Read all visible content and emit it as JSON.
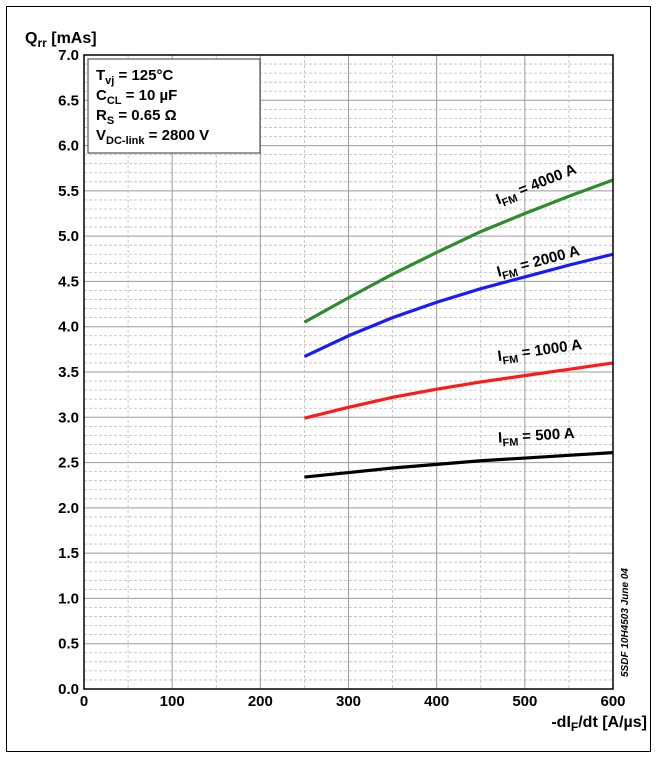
{
  "chart_data": {
    "type": "line",
    "ylabel": {
      "main": "Q",
      "sub": "rr",
      "unit": " [mAs]"
    },
    "xlabel": {
      "pre": "-dI",
      "sub": "F",
      "post": "/dt [A/µs]"
    },
    "xlim": [
      0,
      600
    ],
    "ylim": [
      0,
      7
    ],
    "x_ticks": [
      "0",
      "100",
      "200",
      "300",
      "400",
      "500",
      "600"
    ],
    "y_ticks": [
      "0.0",
      "0.5",
      "1.0",
      "1.5",
      "2.0",
      "2.5",
      "3.0",
      "3.5",
      "4.0",
      "4.5",
      "5.0",
      "5.5",
      "6.0",
      "6.5",
      "7.0"
    ],
    "x_tick_values": [
      0,
      100,
      200,
      300,
      400,
      500,
      600
    ],
    "y_tick_values": [
      0,
      0.5,
      1,
      1.5,
      2,
      2.5,
      3,
      3.5,
      4,
      4.5,
      5,
      5.5,
      6,
      6.5,
      7
    ],
    "grid": true,
    "conditions": [
      {
        "main": "T",
        "sub": "vj",
        "rest": " = 125°C"
      },
      {
        "main": "C",
        "sub": "CL",
        "rest": " = 10 µF"
      },
      {
        "main": "R",
        "sub": "S",
        "rest": " = 0.65 Ω"
      },
      {
        "main": "V",
        "sub": "DC-link",
        "rest": " = 2800 V"
      }
    ],
    "series": [
      {
        "name": "I_FM = 4000 A",
        "label_main": "I",
        "label_sub": "FM",
        "label_rest": " = 4000 A",
        "color": "#2e8b2e",
        "x": [
          250,
          300,
          350,
          400,
          450,
          500,
          550,
          600
        ],
        "y": [
          4.05,
          4.32,
          4.58,
          4.82,
          5.05,
          5.25,
          5.44,
          5.62
        ]
      },
      {
        "name": "I_FM = 2000 A",
        "label_main": "I",
        "label_sub": "FM",
        "label_rest": " = 2000 A",
        "color": "#1a1aff",
        "x": [
          250,
          300,
          350,
          400,
          450,
          500,
          550,
          600
        ],
        "y": [
          3.67,
          3.9,
          4.1,
          4.27,
          4.42,
          4.55,
          4.68,
          4.8
        ]
      },
      {
        "name": "I_FM = 1000 A",
        "label_main": "I",
        "label_sub": "FM",
        "label_rest": " = 1000 A",
        "color": "#ff1a1a",
        "x": [
          250,
          300,
          350,
          400,
          450,
          500,
          550,
          600
        ],
        "y": [
          2.99,
          3.11,
          3.22,
          3.31,
          3.39,
          3.46,
          3.53,
          3.6
        ]
      },
      {
        "name": "I_FM = 500 A",
        "label_main": "I",
        "label_sub": "FM",
        "label_rest": " = 500 A",
        "color": "#000000",
        "x": [
          250,
          300,
          350,
          400,
          450,
          500,
          550,
          600
        ],
        "y": [
          2.34,
          2.39,
          2.44,
          2.48,
          2.52,
          2.55,
          2.58,
          2.61
        ]
      }
    ],
    "annotation": "5SDF 10H4503 June 04"
  }
}
